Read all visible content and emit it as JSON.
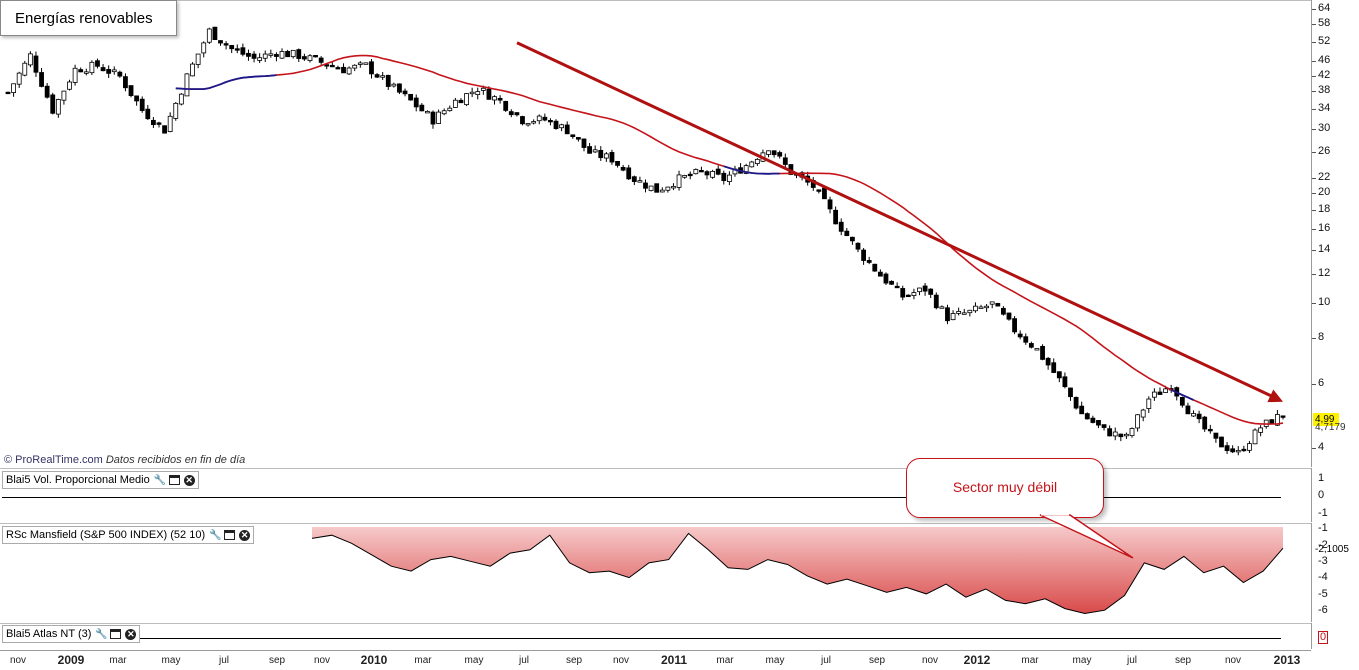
{
  "title": "Energías renovables",
  "credit": {
    "source": "© ProRealTime.com",
    "note": "Datos recibidos en fin de día"
  },
  "annotation": "Sector muy débil",
  "price_axis": {
    "ticks": [
      64,
      58,
      52,
      46,
      42,
      38,
      34,
      30,
      26,
      22,
      20,
      18,
      16,
      14,
      12,
      10,
      8,
      6,
      4
    ]
  },
  "last_price": "4,99",
  "ma_value": "4,7179",
  "indicators": [
    {
      "label": "Blai5 Vol. Proporcional Medio",
      "ticks": [
        "1",
        "0",
        "-1"
      ]
    },
    {
      "label": "RSc Mansfield (S&P 500 INDEX) (52 10)",
      "ticks": [
        "-1",
        "-2",
        "-3",
        "-4",
        "-5",
        "-6"
      ],
      "value": "-2,1005"
    },
    {
      "label": "Blai5 Atlas NT (3)",
      "ticks": [
        "0"
      ]
    }
  ],
  "x_axis": [
    {
      "label": "nov",
      "year": false
    },
    {
      "label": "2009",
      "year": true
    },
    {
      "label": "mar",
      "year": false
    },
    {
      "label": "may",
      "year": false
    },
    {
      "label": "jul",
      "year": false
    },
    {
      "label": "sep",
      "year": false
    },
    {
      "label": "nov",
      "year": false
    },
    {
      "label": "2010",
      "year": true
    },
    {
      "label": "mar",
      "year": false
    },
    {
      "label": "may",
      "year": false
    },
    {
      "label": "jul",
      "year": false
    },
    {
      "label": "sep",
      "year": false
    },
    {
      "label": "nov",
      "year": false
    },
    {
      "label": "2011",
      "year": true
    },
    {
      "label": "mar",
      "year": false
    },
    {
      "label": "may",
      "year": false
    },
    {
      "label": "jul",
      "year": false
    },
    {
      "label": "sep",
      "year": false
    },
    {
      "label": "nov",
      "year": false
    },
    {
      "label": "2012",
      "year": true
    },
    {
      "label": "mar",
      "year": false
    },
    {
      "label": "may",
      "year": false
    },
    {
      "label": "jul",
      "year": false
    },
    {
      "label": "sep",
      "year": false
    },
    {
      "label": "nov",
      "year": false
    },
    {
      "label": "2013",
      "year": true
    }
  ],
  "colors": {
    "candle_up": "#ffffff",
    "candle_down": "#000000",
    "ma": "#c4141a",
    "ma_flat": "#1a1a8c",
    "trendline": "#b01010",
    "rs_fill": "#e88a8a"
  },
  "chart_data": {
    "type": "candlestick",
    "title": "Energías renovables",
    "scale": "log",
    "ylim": [
      3.6,
      66
    ],
    "period": "weekly, nov 2008 – ene 2013",
    "close_path": [
      [
        0,
        38
      ],
      [
        4,
        48
      ],
      [
        8,
        34
      ],
      [
        12,
        44
      ],
      [
        16,
        45
      ],
      [
        20,
        42
      ],
      [
        24,
        34
      ],
      [
        28,
        30
      ],
      [
        32,
        42
      ],
      [
        36,
        56
      ],
      [
        40,
        50
      ],
      [
        44,
        47
      ],
      [
        48,
        49
      ],
      [
        52,
        48
      ],
      [
        56,
        46
      ],
      [
        60,
        44
      ],
      [
        64,
        45
      ],
      [
        68,
        40
      ],
      [
        72,
        36
      ],
      [
        76,
        32
      ],
      [
        80,
        36
      ],
      [
        84,
        39
      ],
      [
        88,
        36
      ],
      [
        92,
        32
      ],
      [
        96,
        32
      ],
      [
        100,
        30
      ],
      [
        104,
        26
      ],
      [
        108,
        25
      ],
      [
        112,
        22
      ],
      [
        116,
        20.5
      ],
      [
        120,
        22
      ],
      [
        124,
        23
      ],
      [
        128,
        22
      ],
      [
        132,
        24
      ],
      [
        136,
        27
      ],
      [
        140,
        23
      ],
      [
        144,
        21
      ],
      [
        148,
        17
      ],
      [
        152,
        14
      ],
      [
        156,
        12
      ],
      [
        160,
        10.5
      ],
      [
        164,
        11
      ],
      [
        168,
        9.2
      ],
      [
        172,
        9.5
      ],
      [
        176,
        10
      ],
      [
        180,
        8.5
      ],
      [
        184,
        7.5
      ],
      [
        188,
        6.2
      ],
      [
        192,
        5.0
      ],
      [
        196,
        4.5
      ],
      [
        200,
        4.3
      ],
      [
        204,
        5.5
      ],
      [
        208,
        6.0
      ],
      [
        212,
        4.9
      ],
      [
        216,
        4.2
      ],
      [
        220,
        3.9
      ],
      [
        224,
        4.6
      ],
      [
        228,
        4.99
      ]
    ],
    "moving_average": {
      "name": "MA",
      "last": 4.7179
    },
    "trendline": {
      "from": [
        2010.6,
        52
      ],
      "to": [
        2013.0,
        5.4
      ]
    },
    "rs_mansfield": {
      "ylim": [
        -6.5,
        -0.8
      ],
      "last": -2.1005,
      "values": [
        -1.5,
        -1.3,
        -1.8,
        -2.5,
        -3.2,
        -3.5,
        -2.8,
        -2.6,
        -2.9,
        -3.2,
        -2.4,
        -2.2,
        -1.3,
        -3.0,
        -3.6,
        -3.5,
        -3.9,
        -3.0,
        -2.8,
        -1.2,
        -2.2,
        -3.3,
        -3.4,
        -2.8,
        -3.1,
        -3.8,
        -4.3,
        -4.0,
        -4.4,
        -4.8,
        -4.5,
        -4.9,
        -4.3,
        -5.1,
        -4.6,
        -5.3,
        -5.5,
        -5.2,
        -5.8,
        -6.1,
        -5.9,
        -5.0,
        -3.0,
        -3.4,
        -2.6,
        -3.6,
        -3.2,
        -4.2,
        -3.5,
        -2.1
      ]
    }
  }
}
